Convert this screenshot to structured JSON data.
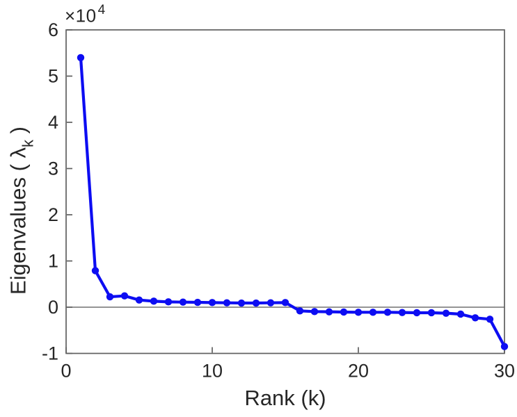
{
  "figure": {
    "xlabel": "Rank (k)",
    "ylabel": {
      "prefix": "Eigenvalues ( ",
      "symbol": "λ",
      "subscript": "k",
      "suffix": " )"
    },
    "offset_label": {
      "base": "×10",
      "exponent": "4"
    }
  },
  "colors": {
    "line": "#0d0df2",
    "marker": "#0d0df2",
    "frame": "#5f5f5f",
    "zero_line": "#707070",
    "text": "#262626",
    "background": "#ffffff"
  },
  "axes": {
    "xlim": [
      0,
      30
    ],
    "ylim": [
      -10000,
      60000
    ],
    "x_tick_values": [
      0,
      10,
      20,
      30
    ],
    "x_tick_labels": [
      "0",
      "10",
      "20",
      "30"
    ],
    "y_tick_values": [
      -10000,
      0,
      10000,
      20000,
      30000,
      40000,
      50000,
      60000
    ],
    "y_tick_labels": [
      "-1",
      "0",
      "1",
      "2",
      "3",
      "4",
      "5",
      "6"
    ],
    "tick_direction": "in",
    "box": true,
    "grid": false
  },
  "chart_data": {
    "type": "line",
    "title": "",
    "xlabel": "Rank (k)",
    "ylabel": "Eigenvalues (lambda_k)",
    "y_axis_multiplier_label": "×10^4",
    "legend": "none",
    "grid": false,
    "zero_line": true,
    "marker": "filled-circle",
    "xlim": [
      0,
      30
    ],
    "ylim": [
      -10000,
      60000
    ],
    "x": [
      1,
      2,
      3,
      4,
      5,
      6,
      7,
      8,
      9,
      10,
      11,
      12,
      13,
      14,
      15,
      16,
      17,
      18,
      19,
      20,
      21,
      22,
      23,
      24,
      25,
      26,
      27,
      28,
      29,
      30
    ],
    "y": [
      54000,
      7900,
      2250,
      2450,
      1550,
      1300,
      1150,
      1100,
      1050,
      1000,
      950,
      900,
      900,
      950,
      1000,
      -800,
      -950,
      -1000,
      -1050,
      -1100,
      -1100,
      -1100,
      -1150,
      -1200,
      -1200,
      -1300,
      -1500,
      -2300,
      -2600,
      -8500
    ]
  }
}
